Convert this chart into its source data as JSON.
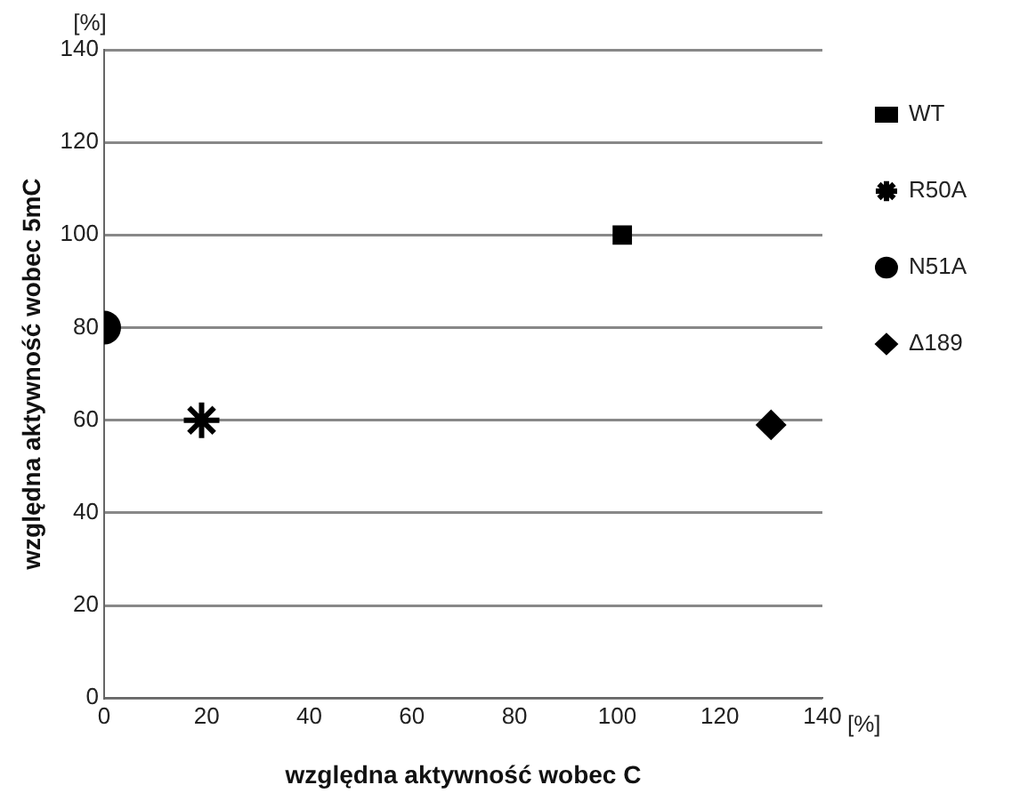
{
  "chart_data": {
    "type": "scatter",
    "xlabel": "względna aktywność wobec C",
    "ylabel": "względna aktywność wobec 5mC",
    "xlim": [
      0,
      140
    ],
    "xticks": [
      0,
      20,
      40,
      60,
      80,
      100,
      120,
      140
    ],
    "ylim": [
      0,
      140
    ],
    "yticks": [
      0,
      20,
      40,
      60,
      80,
      100,
      120,
      140
    ],
    "grid": "y",
    "legend": "right",
    "annotations": [
      "[%]",
      "[%]"
    ],
    "series": [
      {
        "name": "WT",
        "color": "#000000",
        "marker": "square",
        "x": [
          101
        ],
        "values": [
          100
        ]
      },
      {
        "name": "R50A",
        "color": "#000000",
        "marker": "cross",
        "x": [
          19
        ],
        "values": [
          60
        ]
      },
      {
        "name": "N51A",
        "color": "#000000",
        "marker": "circle",
        "x": [
          0
        ],
        "values": [
          80
        ]
      },
      {
        "name": "Δ189",
        "color": "#000000",
        "marker": "diamond",
        "x": [
          130
        ],
        "values": [
          59
        ]
      }
    ]
  }
}
